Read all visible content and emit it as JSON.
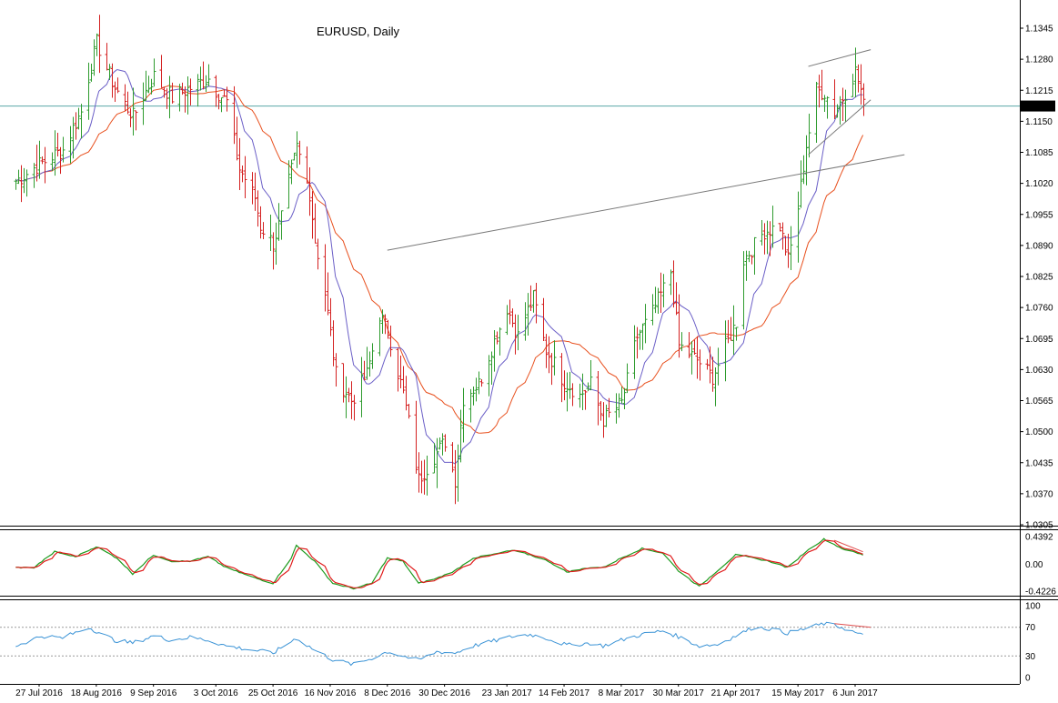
{
  "chart_data": {
    "type": "candlestick",
    "title": "EURUSD, Daily",
    "current_price_label": "1.1182",
    "colors": {
      "bull": "#2e9b2e",
      "bear": "#d42020",
      "ma_fast": "#6b5fc7",
      "ma_slow": "#e8501e",
      "trendline": "#7a7a7a",
      "price_line": "#5aa6a6",
      "stoch_k": "#1c9a1c",
      "stoch_d": "#e01b1b",
      "rsi": "#3a93d6",
      "divergence": "#e05050"
    },
    "price_axis": {
      "min": 1.0305,
      "max": 1.1345,
      "ticks": [
        "1.1345",
        "1.1280",
        "1.1215",
        "1.1150",
        "1.1085",
        "1.1020",
        "1.0955",
        "1.0890",
        "1.0825",
        "1.0760",
        "1.0695",
        "1.0630",
        "1.0565",
        "1.0500",
        "1.0435",
        "1.0370",
        "1.0305"
      ]
    },
    "date_labels": [
      "27 Jul 2016",
      "18 Aug 2016",
      "9 Sep 2016",
      "3 Oct 2016",
      "25 Oct 2016",
      "16 Nov 2016",
      "8 Dec 2016",
      "30 Dec 2016",
      "23 Jan 2017",
      "14 Feb 2017",
      "8 Mar 2017",
      "30 Mar 2017",
      "21 Apr 2017",
      "15 May 2017",
      "6 Jun 2017"
    ],
    "price_anchors": [
      [
        "2016-07-18",
        1.1025
      ],
      [
        "2016-07-27",
        1.106
      ],
      [
        "2016-08-05",
        1.109
      ],
      [
        "2016-08-12",
        1.117
      ],
      [
        "2016-08-18",
        1.1315
      ],
      [
        "2016-08-25",
        1.122
      ],
      [
        "2016-09-01",
        1.116
      ],
      [
        "2016-09-09",
        1.1245
      ],
      [
        "2016-09-16",
        1.12
      ],
      [
        "2016-09-23",
        1.122
      ],
      [
        "2016-09-30",
        1.124
      ],
      [
        "2016-10-03",
        1.1215
      ],
      [
        "2016-10-07",
        1.119
      ],
      [
        "2016-10-12",
        1.105
      ],
      [
        "2016-10-18",
        1.099
      ],
      [
        "2016-10-20",
        1.093
      ],
      [
        "2016-10-25",
        1.0895
      ],
      [
        "2016-10-28",
        1.095
      ],
      [
        "2016-11-03",
        1.1095
      ],
      [
        "2016-11-08",
        1.1
      ],
      [
        "2016-11-10",
        1.09
      ],
      [
        "2016-11-14",
        1.079
      ],
      [
        "2016-11-18",
        1.062
      ],
      [
        "2016-11-24",
        1.0565
      ],
      [
        "2016-11-30",
        1.062
      ],
      [
        "2016-12-05",
        1.0745
      ],
      [
        "2016-12-08",
        1.071
      ],
      [
        "2016-12-14",
        1.058
      ],
      [
        "2016-12-20",
        1.04
      ],
      [
        "2016-12-23",
        1.0425
      ],
      [
        "2016-12-30",
        1.048
      ],
      [
        "2017-01-03",
        1.04
      ],
      [
        "2017-01-06",
        1.057
      ],
      [
        "2017-01-12",
        1.06
      ],
      [
        "2017-01-18",
        1.069
      ],
      [
        "2017-01-23",
        1.076
      ],
      [
        "2017-01-27",
        1.07
      ],
      [
        "2017-02-02",
        1.078
      ],
      [
        "2017-02-07",
        1.067
      ],
      [
        "2017-02-14",
        1.0605
      ],
      [
        "2017-02-20",
        1.0575
      ],
      [
        "2017-02-24",
        1.06
      ],
      [
        "2017-03-01",
        1.0525
      ],
      [
        "2017-03-08",
        1.056
      ],
      [
        "2017-03-14",
        1.07
      ],
      [
        "2017-03-20",
        1.075
      ],
      [
        "2017-03-24",
        1.08
      ],
      [
        "2017-03-27",
        1.0835
      ],
      [
        "2017-03-30",
        1.068
      ],
      [
        "2017-04-06",
        1.065
      ],
      [
        "2017-04-12",
        1.0615
      ],
      [
        "2017-04-18",
        1.069
      ],
      [
        "2017-04-21",
        1.073
      ],
      [
        "2017-04-24",
        1.086
      ],
      [
        "2017-05-02",
        1.092
      ],
      [
        "2017-05-08",
        1.093
      ],
      [
        "2017-05-11",
        1.086
      ],
      [
        "2017-05-15",
        1.097
      ],
      [
        "2017-05-18",
        1.11
      ],
      [
        "2017-05-22",
        1.1215
      ],
      [
        "2017-05-25",
        1.121
      ],
      [
        "2017-05-29",
        1.117
      ],
      [
        "2017-06-01",
        1.12
      ],
      [
        "2017-06-06",
        1.1255
      ],
      [
        "2017-06-08",
        1.1215
      ],
      [
        "2017-06-09",
        1.1182
      ]
    ],
    "trendlines": [
      {
        "from": [
          "2016-12-08",
          1.088
        ],
        "to": [
          "2017-06-25",
          1.108
        ]
      },
      {
        "from": [
          "2017-05-19",
          1.1265
        ],
        "to": [
          "2017-06-12",
          1.13
        ]
      },
      {
        "from": [
          "2017-05-19",
          1.108
        ],
        "to": [
          "2017-06-12",
          1.1195
        ]
      }
    ],
    "stochastic": {
      "ticks": [
        "0.4392",
        "0.00",
        "-0.4226"
      ],
      "range": [
        -0.4226,
        0.4392
      ],
      "anchors": [
        [
          "2016-07-18",
          -0.05
        ],
        [
          "2016-07-25",
          -0.05
        ],
        [
          "2016-08-02",
          0.2
        ],
        [
          "2016-08-10",
          0.12
        ],
        [
          "2016-08-18",
          0.28
        ],
        [
          "2016-08-26",
          0.1
        ],
        [
          "2016-09-01",
          -0.15
        ],
        [
          "2016-09-09",
          0.15
        ],
        [
          "2016-09-16",
          0.05
        ],
        [
          "2016-09-23",
          0.05
        ],
        [
          "2016-09-30",
          0.12
        ],
        [
          "2016-10-07",
          -0.05
        ],
        [
          "2016-10-17",
          -0.2
        ],
        [
          "2016-10-25",
          -0.3
        ],
        [
          "2016-11-01",
          0.1
        ],
        [
          "2016-11-03",
          0.3
        ],
        [
          "2016-11-10",
          0.05
        ],
        [
          "2016-11-17",
          -0.3
        ],
        [
          "2016-11-25",
          -0.38
        ],
        [
          "2016-12-02",
          -0.3
        ],
        [
          "2016-12-08",
          0.1
        ],
        [
          "2016-12-14",
          0.05
        ],
        [
          "2016-12-20",
          -0.3
        ],
        [
          "2016-12-27",
          -0.22
        ],
        [
          "2017-01-03",
          -0.1
        ],
        [
          "2017-01-10",
          0.1
        ],
        [
          "2017-01-17",
          0.15
        ],
        [
          "2017-01-25",
          0.22
        ],
        [
          "2017-02-01",
          0.15
        ],
        [
          "2017-02-08",
          0.05
        ],
        [
          "2017-02-15",
          -0.12
        ],
        [
          "2017-02-24",
          -0.05
        ],
        [
          "2017-03-01",
          -0.05
        ],
        [
          "2017-03-08",
          0.1
        ],
        [
          "2017-03-16",
          0.25
        ],
        [
          "2017-03-24",
          0.18
        ],
        [
          "2017-03-30",
          -0.1
        ],
        [
          "2017-04-07",
          -0.35
        ],
        [
          "2017-04-14",
          -0.1
        ],
        [
          "2017-04-21",
          0.15
        ],
        [
          "2017-04-28",
          0.1
        ],
        [
          "2017-05-04",
          0.05
        ],
        [
          "2017-05-11",
          -0.05
        ],
        [
          "2017-05-18",
          0.2
        ],
        [
          "2017-05-25",
          0.4
        ],
        [
          "2017-06-01",
          0.25
        ],
        [
          "2017-06-09",
          0.15
        ]
      ],
      "divergence": {
        "from": [
          "2017-05-29",
          0.38
        ],
        "to": [
          "2017-06-09",
          0.2
        ]
      }
    },
    "rsi": {
      "ticks": [
        "100",
        "70",
        "30",
        "0"
      ],
      "levels": [
        70,
        30
      ],
      "anchors": [
        [
          "2016-07-18",
          44
        ],
        [
          "2016-07-28",
          58
        ],
        [
          "2016-08-05",
          55
        ],
        [
          "2016-08-15",
          70
        ],
        [
          "2016-08-25",
          52
        ],
        [
          "2016-09-01",
          48
        ],
        [
          "2016-09-09",
          58
        ],
        [
          "2016-09-16",
          52
        ],
        [
          "2016-09-23",
          56
        ],
        [
          "2016-09-30",
          52
        ],
        [
          "2016-10-07",
          44
        ],
        [
          "2016-10-14",
          40
        ],
        [
          "2016-10-25",
          34
        ],
        [
          "2016-11-03",
          55
        ],
        [
          "2016-11-10",
          38
        ],
        [
          "2016-11-17",
          25
        ],
        [
          "2016-11-25",
          18
        ],
        [
          "2016-12-02",
          27
        ],
        [
          "2016-12-08",
          36
        ],
        [
          "2016-12-14",
          30
        ],
        [
          "2016-12-20",
          24
        ],
        [
          "2016-12-27",
          36
        ],
        [
          "2017-01-03",
          34
        ],
        [
          "2017-01-10",
          44
        ],
        [
          "2017-01-17",
          50
        ],
        [
          "2017-01-25",
          57
        ],
        [
          "2017-02-01",
          60
        ],
        [
          "2017-02-08",
          54
        ],
        [
          "2017-02-15",
          45
        ],
        [
          "2017-02-24",
          48
        ],
        [
          "2017-03-01",
          44
        ],
        [
          "2017-03-08",
          52
        ],
        [
          "2017-03-16",
          60
        ],
        [
          "2017-03-24",
          65
        ],
        [
          "2017-03-30",
          57
        ],
        [
          "2017-04-07",
          44
        ],
        [
          "2017-04-14",
          46
        ],
        [
          "2017-04-21",
          58
        ],
        [
          "2017-04-28",
          70
        ],
        [
          "2017-05-04",
          68
        ],
        [
          "2017-05-11",
          62
        ],
        [
          "2017-05-18",
          68
        ],
        [
          "2017-05-25",
          75
        ],
        [
          "2017-06-01",
          70
        ],
        [
          "2017-06-09",
          58
        ]
      ],
      "divergence": {
        "from": [
          "2017-05-29",
          75
        ],
        "to": [
          "2017-06-12",
          70
        ]
      }
    }
  }
}
